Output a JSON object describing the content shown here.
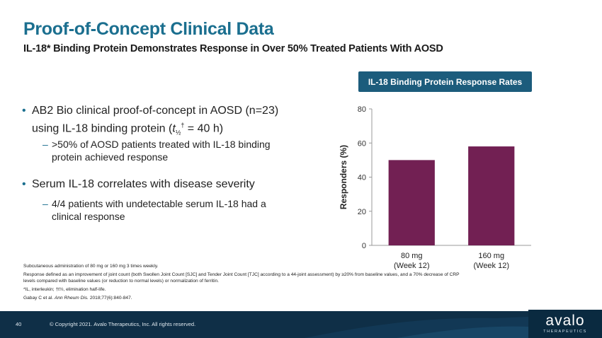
{
  "slide": {
    "title": "Proof-of-Concept Clinical Data",
    "subtitle": "IL-18* Binding Protein Demonstrates Response in Over 50% Treated Patients With AOSD"
  },
  "bullets": [
    {
      "text_a": "AB2 Bio clinical proof-of-concept in AOSD (n=23) using IL-18 binding protein (",
      "t_sym": "t",
      "t_sub": "½",
      "t_sup": "†",
      "text_b": " = 40 h)",
      "sub": ">50% of AOSD patients treated with IL-18 binding protein achieved response"
    },
    {
      "text": "Serum IL-18 correlates with disease severity",
      "sub": "4/4 patients with undetectable serum IL-18 had a clinical response"
    }
  ],
  "chart_header": "IL-18 Binding Protein Response Rates",
  "chart_data": {
    "type": "bar",
    "categories": [
      [
        "80 mg",
        "(Week 12)"
      ],
      [
        "160 mg",
        "(Week 12)"
      ]
    ],
    "values": [
      50,
      58
    ],
    "ylabel": "Responders (%)",
    "ylim": [
      0,
      80
    ],
    "yticks": [
      0,
      20,
      40,
      60,
      80
    ],
    "bar_color": "#722053",
    "grid": false
  },
  "footnotes": {
    "line1": "Subcutaneous administration of 80 mg or 160 mg 3 times weekly.",
    "line2": "Response defined as an improvement of joint count (both Swollen Joint Count [SJC] and Tender Joint Count [TJC] according to a 44-joint assessment) by ≥20% from baseline values, and a 70% decrease of CRP levels compared with baseline values (or reduction to normal levels) or normalization of ferritin.",
    "line3": "*IL, interleukin; †t½, elimination half-life.",
    "citation_a": "Gabay C et al. ",
    "citation_journal": "Ann Rheum Dis.",
    "citation_b": " 2018;77(6):840-847."
  },
  "footer": {
    "page_number": "40",
    "copyright": "© Copyright 2021. Avalo Therapeutics, Inc. All rights reserved.",
    "logo_word": "avalo",
    "logo_sub": "THERAPEUTICS"
  },
  "colors": {
    "title": "#1b6f8f",
    "header_box": "#1c5c7c",
    "footer_band": "#0f2f47",
    "bar": "#722053"
  }
}
